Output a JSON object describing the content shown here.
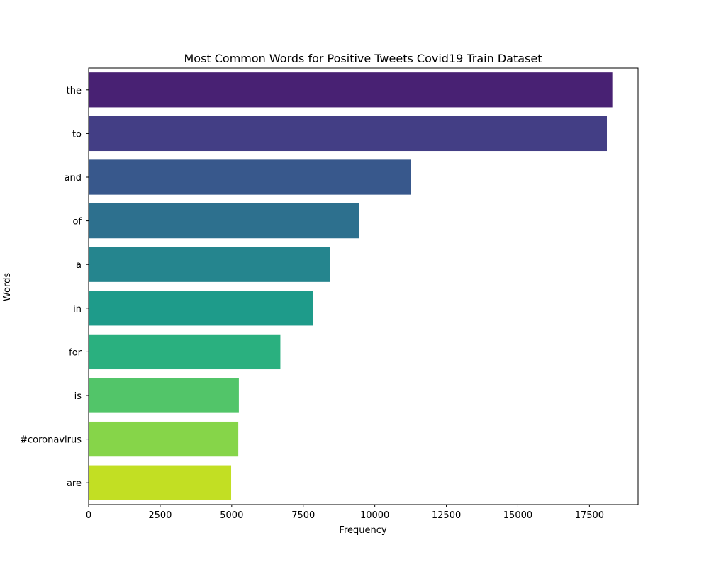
{
  "chart_data": {
    "type": "bar",
    "orientation": "horizontal",
    "title": "Most Common Words for Positive Tweets Covid19 Train Dataset",
    "xlabel": "Frequency",
    "ylabel": "Words",
    "categories": [
      "the",
      "to",
      "and",
      "of",
      "a",
      "in",
      "for",
      "is",
      "#coronavirus",
      "are"
    ],
    "values": [
      18300,
      18110,
      11250,
      9440,
      8440,
      7840,
      6700,
      5250,
      5230,
      4980
    ],
    "colors": [
      "#482173",
      "#433e85",
      "#38588c",
      "#2d708e",
      "#25858e",
      "#1e9b8a",
      "#2ab07f",
      "#52c569",
      "#86d549",
      "#c2df23"
    ],
    "xlim": [
      0,
      19200
    ],
    "xticks": [
      0,
      2500,
      5000,
      7500,
      10000,
      12500,
      15000,
      17500
    ],
    "grid": false,
    "legend": "none"
  }
}
